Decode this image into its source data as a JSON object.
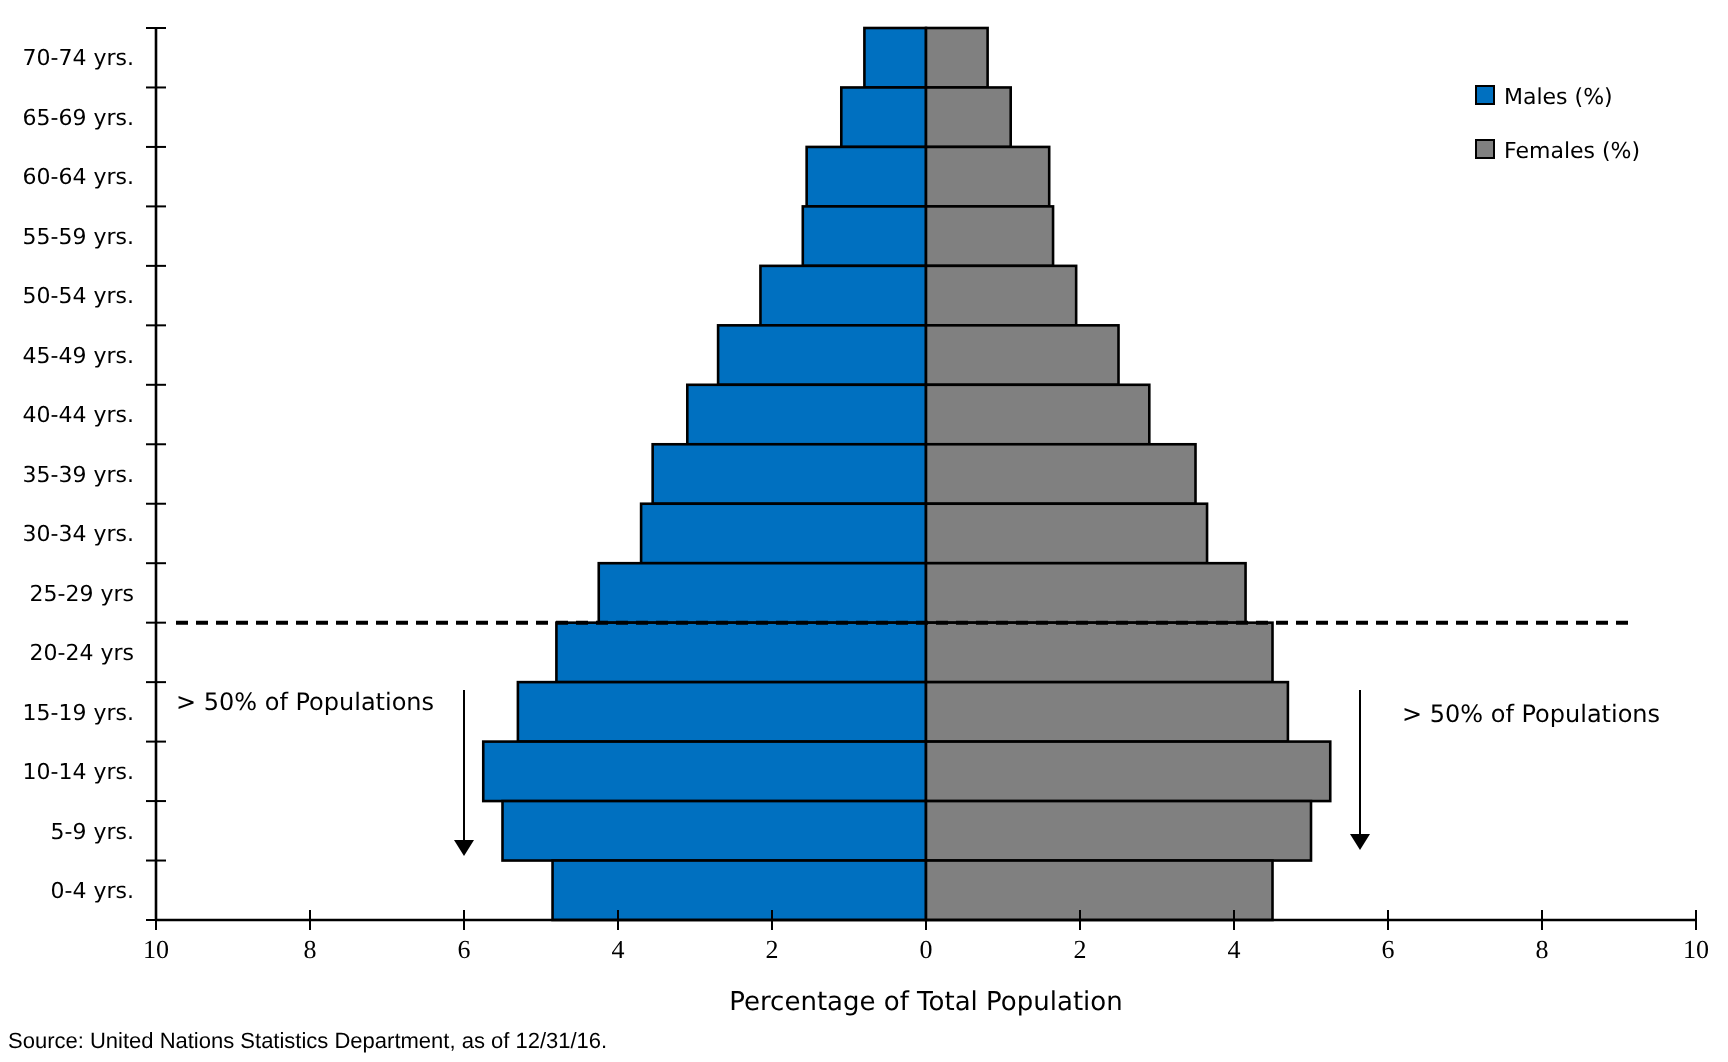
{
  "chart_data": {
    "type": "bar",
    "orientation": "horizontal",
    "xlabel": "Percentage of Total Population",
    "categories": [
      "70-74 yrs.",
      "65-69 yrs.",
      "60-64 yrs.",
      "55-59 yrs.",
      "50-54 yrs.",
      "45-49 yrs.",
      "40-44 yrs.",
      "35-39 yrs.",
      "30-34 yrs.",
      "25-29 yrs",
      "20-24 yrs",
      "15-19 yrs.",
      "10-14 yrs.",
      "5-9 yrs.",
      "0-4 yrs."
    ],
    "series": [
      {
        "name": "Males (%)",
        "color": "#0070c0",
        "values": [
          -0.8,
          -1.1,
          -1.55,
          -1.6,
          -2.15,
          -2.7,
          -3.1,
          -3.55,
          -3.7,
          -4.25,
          -4.8,
          -5.3,
          -5.75,
          -5.5,
          -4.85
        ]
      },
      {
        "name": "Females (%)",
        "color": "#808080",
        "values": [
          0.8,
          1.1,
          1.6,
          1.65,
          1.95,
          2.5,
          2.9,
          3.5,
          3.65,
          4.15,
          4.5,
          4.7,
          5.25,
          5.0,
          4.5
        ]
      }
    ],
    "xlim": [
      -10,
      10
    ],
    "xticks": [
      {
        "value": -10,
        "label": "10"
      },
      {
        "value": -8,
        "label": "8"
      },
      {
        "value": -6,
        "label": "6"
      },
      {
        "value": -4,
        "label": "4"
      },
      {
        "value": -2,
        "label": "2"
      },
      0,
      2,
      4,
      6,
      8,
      10
    ],
    "ref_lines": [
      {
        "axis": "y",
        "value": "25-29 yrs",
        "line_style": "dashed",
        "color": "#000000"
      }
    ],
    "annotations": [
      "> 50% of Populations",
      "> 50% of Populations",
      "Source: United Nations Statistics Department, as of 12/31/16."
    ],
    "legend": "top right",
    "grid": false,
    "stacked": true
  }
}
